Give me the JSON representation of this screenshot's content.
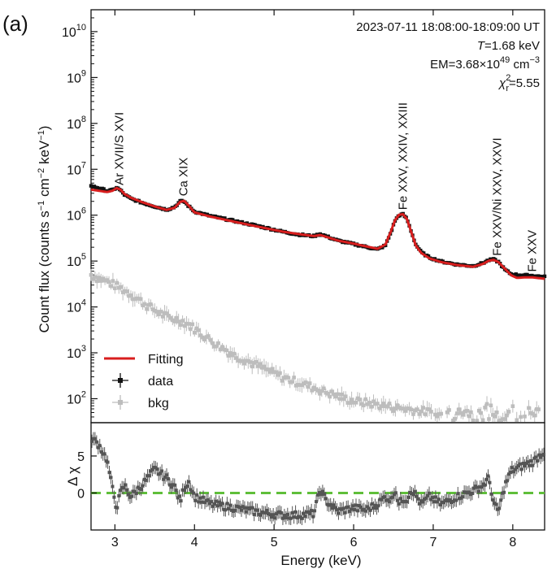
{
  "panel_label": "(a)",
  "annotations": {
    "time": "2023-07-11  18:08:00-18:09:00 UT",
    "temperature_sym": "T",
    "temperature_val": "=1.68 keV",
    "em_prefix": "EM=3.68×10",
    "em_exp": "49",
    "em_unit": " cm",
    "em_unit_exp": "−3",
    "chi_sym": "χ",
    "chi_sup": "2",
    "chi_sub": "r",
    "chi_val": "=5.55"
  },
  "line_labels": [
    {
      "text": "Ar XVII/S XVI",
      "energy": 3.05,
      "flux": 4500000.0
    },
    {
      "text": "Ca XIX",
      "energy": 3.86,
      "flux": 2600000.0
    },
    {
      "text": "Fe XXV, XXIV, XXIII",
      "energy": 6.62,
      "flux": 1300000.0
    },
    {
      "text": "Fe XXV/Ni XXV, XXVI",
      "energy": 7.8,
      "flux": 130000.0
    },
    {
      "text": "Fe XXV",
      "energy": 8.24,
      "flux": 58000.0
    }
  ],
  "legend": {
    "fitting": "Fitting",
    "data": "data",
    "bkg": "bkg"
  },
  "colors": {
    "fit": "#d81e1e",
    "data": "#111111",
    "bkg": "#bdbdbd",
    "residual": "#555555",
    "zero_line": "#5fbf3a"
  },
  "chart_data": [
    {
      "type": "line",
      "ylabel_main": "Count flux (counts s",
      "ylabel_parts": [
        "−1",
        " cm",
        "−2",
        " keV",
        "−1",
        ")"
      ],
      "xlim": [
        2.7,
        8.4
      ],
      "ylim": [
        30,
        30000000000.0
      ],
      "yscale": "log",
      "yticks": [
        {
          "exp": "2",
          "value": 100
        },
        {
          "exp": "3",
          "value": 1000
        },
        {
          "exp": "4",
          "value": 10000
        },
        {
          "exp": "5",
          "value": 100000
        },
        {
          "exp": "6",
          "value": 1000000
        },
        {
          "exp": "7",
          "value": 10000000
        },
        {
          "exp": "8",
          "value": 100000000
        },
        {
          "exp": "9",
          "value": 1000000000
        },
        {
          "exp": "10",
          "value": 10000000000
        }
      ],
      "ytick_base": "10",
      "series": [
        {
          "name": "Fitting",
          "x": [
            2.7,
            2.8,
            2.9,
            2.97,
            3.02,
            3.07,
            3.12,
            3.2,
            3.35,
            3.5,
            3.65,
            3.75,
            3.82,
            3.87,
            3.93,
            4.0,
            4.2,
            4.5,
            4.8,
            5.1,
            5.3,
            5.5,
            5.58,
            5.65,
            5.8,
            6.0,
            6.15,
            6.3,
            6.4,
            6.47,
            6.52,
            6.57,
            6.62,
            6.67,
            6.72,
            6.78,
            6.85,
            6.95,
            7.1,
            7.3,
            7.5,
            7.62,
            7.7,
            7.76,
            7.82,
            7.9,
            7.98,
            8.05,
            8.15,
            8.25,
            8.4
          ],
          "y": [
            3600000.0,
            3400000.0,
            3200000.0,
            3400000.0,
            3900000.0,
            3600000.0,
            2900000.0,
            2400000.0,
            1900000.0,
            1550000.0,
            1300000.0,
            1450000.0,
            1950000.0,
            2050000.0,
            1600000.0,
            1150000.0,
            930000.0,
            720000.0,
            560000.0,
            440000.0,
            390000.0,
            350000.0,
            370000.0,
            340000.0,
            280000.0,
            240000.0,
            210000.0,
            185000.0,
            230000.0,
            450000.0,
            780000.0,
            1020000.0,
            1050000.0,
            820000.0,
            450000.0,
            220000.0,
            150000.0,
            115000.0,
            95000.0,
            82000.0,
            75000.0,
            86000.0,
            102000.0,
            106000.0,
            95000.0,
            68000.0,
            49000.0,
            43000.0,
            44000.0,
            44000.0,
            41000.0
          ]
        },
        {
          "name": "data",
          "x": [
            2.7,
            2.8,
            2.9,
            2.97,
            3.02,
            3.07,
            3.12,
            3.2,
            3.35,
            3.5,
            3.65,
            3.75,
            3.82,
            3.87,
            3.93,
            4.0,
            4.2,
            4.5,
            4.8,
            5.1,
            5.3,
            5.5,
            5.58,
            5.65,
            5.8,
            6.0,
            6.15,
            6.3,
            6.4,
            6.47,
            6.52,
            6.57,
            6.62,
            6.67,
            6.72,
            6.78,
            6.85,
            6.95,
            7.1,
            7.3,
            7.5,
            7.62,
            7.7,
            7.76,
            7.82,
            7.9,
            7.98,
            8.05,
            8.15,
            8.25,
            8.4
          ],
          "y": [
            4300000.0,
            3900000.0,
            3400000.0,
            3500000.0,
            4000000.0,
            3500000.0,
            2800000.0,
            2300000.0,
            1850000.0,
            1550000.0,
            1320000.0,
            1500000.0,
            2000000.0,
            2000000.0,
            1550000.0,
            1200000.0,
            960000.0,
            750000.0,
            580000.0,
            440000.0,
            380000.0,
            350000.0,
            390000.0,
            350000.0,
            280000.0,
            235000.0,
            205000.0,
            180000.0,
            220000.0,
            430000.0,
            760000.0,
            1000000.0,
            1040000.0,
            830000.0,
            460000.0,
            230000.0,
            155000.0,
            120000.0,
            98000.0,
            84000.0,
            78000.0,
            90000.0,
            105000.0,
            108000.0,
            96000.0,
            65000.0,
            52000.0,
            50000.0,
            49000.0,
            48000.0,
            45000.0
          ]
        },
        {
          "name": "bkg",
          "x": [
            2.7,
            2.8,
            2.9,
            3.0,
            3.1,
            3.2,
            3.3,
            3.4,
            3.5,
            3.6,
            3.7,
            3.8,
            3.9,
            4.0,
            4.1,
            4.2,
            4.3,
            4.4,
            4.5,
            4.6,
            4.7,
            4.8,
            4.9,
            5.0,
            5.1,
            5.2,
            5.3,
            5.4,
            5.5,
            5.6,
            5.7,
            5.8,
            5.9,
            6.0,
            6.2,
            6.4,
            6.6,
            6.8,
            7.0
          ],
          "y": [
            50000.0,
            42000.0,
            36000.0,
            30000.0,
            24000.0,
            19000.0,
            14500.0,
            11000.0,
            8500.0,
            6800.0,
            5600.0,
            5300.0,
            4400.0,
            3400.0,
            2500.0,
            1900.0,
            1450.0,
            1150.0,
            880,
            760,
            620,
            520,
            430,
            360,
            300,
            260,
            230,
            200,
            175,
            150,
            130,
            115,
            100,
            90,
            80,
            70,
            62,
            56,
            50
          ]
        }
      ]
    },
    {
      "type": "scatter",
      "xlabel": "Energy (keV)",
      "ylabel_sym": "Δ χ",
      "xlim": [
        2.7,
        8.4
      ],
      "ylim": [
        -5,
        9.5
      ],
      "xticks": [
        3,
        4,
        5,
        6,
        7,
        8
      ],
      "yticks": [
        0,
        5
      ],
      "zero_line": 0,
      "series": [
        {
          "name": "residual",
          "x": [
            2.7,
            2.8,
            2.9,
            2.97,
            3.02,
            3.07,
            3.12,
            3.2,
            3.35,
            3.5,
            3.65,
            3.75,
            3.82,
            3.87,
            3.93,
            4.0,
            4.2,
            4.5,
            4.8,
            5.1,
            5.3,
            5.5,
            5.58,
            5.65,
            5.8,
            6.0,
            6.15,
            6.3,
            6.4,
            6.47,
            6.52,
            6.57,
            6.62,
            6.67,
            6.72,
            6.78,
            6.85,
            6.95,
            7.1,
            7.3,
            7.5,
            7.62,
            7.7,
            7.76,
            7.82,
            7.9,
            7.98,
            8.05,
            8.15,
            8.25,
            8.4
          ],
          "y": [
            7.5,
            6.5,
            4.5,
            0.5,
            -2.0,
            0.0,
            1.0,
            -0.5,
            1.2,
            3.2,
            2.0,
            0.8,
            -1.2,
            0.8,
            1.5,
            -0.5,
            -1.5,
            -2.0,
            -2.6,
            -3.0,
            -3.0,
            -2.8,
            0.5,
            -1.0,
            -2.5,
            -2.0,
            -2.3,
            -1.5,
            -0.5,
            -1.0,
            0.6,
            -1.5,
            -0.8,
            -0.8,
            0.5,
            -0.3,
            -1.5,
            -0.5,
            -1.5,
            -0.5,
            0.3,
            1.0,
            2.0,
            -1.5,
            -2.5,
            1.0,
            3.0,
            3.3,
            3.8,
            4.2,
            5.7
          ]
        }
      ]
    }
  ]
}
